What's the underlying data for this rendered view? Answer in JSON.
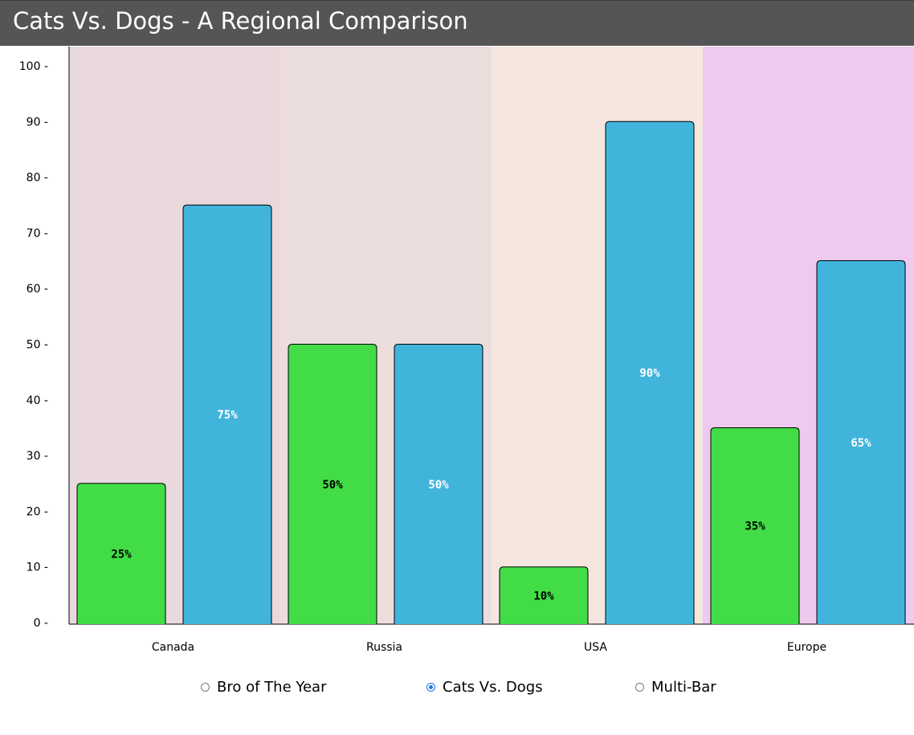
{
  "header": {
    "title": "Cats Vs. Dogs - A Regional Comparison"
  },
  "colors": {
    "cats": "#41dc46",
    "dogs": "#41b4dc",
    "region_backgrounds": [
      "#e9d9dd",
      "#ecdedd",
      "#f5e7df",
      "#edcaee"
    ],
    "header_bg": "#555555"
  },
  "chart_data": {
    "type": "bar",
    "title": "Cats Vs. Dogs - A Regional Comparison",
    "categories": [
      "Canada",
      "Russia",
      "USA",
      "Europe"
    ],
    "series": [
      {
        "values": [
          25,
          50,
          10,
          35
        ],
        "labels": [
          "25%",
          "50%",
          "10%",
          "35%"
        ]
      },
      {
        "values": [
          75,
          50,
          90,
          65
        ],
        "labels": [
          "75%",
          "50%",
          "90%",
          "65%"
        ]
      }
    ],
    "ylim": [
      0,
      100
    ],
    "yticks": [
      0,
      10,
      20,
      30,
      40,
      50,
      60,
      70,
      80,
      90,
      100
    ],
    "ytick_labels": [
      "0 -",
      "10 -",
      "20 -",
      "30 -",
      "40 -",
      "50 -",
      "60 -",
      "70 -",
      "80 -",
      "90 -",
      "100 -"
    ],
    "xlabel": "",
    "ylabel": "",
    "grid": false,
    "legend": "none"
  },
  "radio_options": [
    {
      "label": "Bro of The Year",
      "checked": false
    },
    {
      "label": "Cats Vs. Dogs",
      "checked": true
    },
    {
      "label": "Multi-Bar",
      "checked": false
    }
  ]
}
